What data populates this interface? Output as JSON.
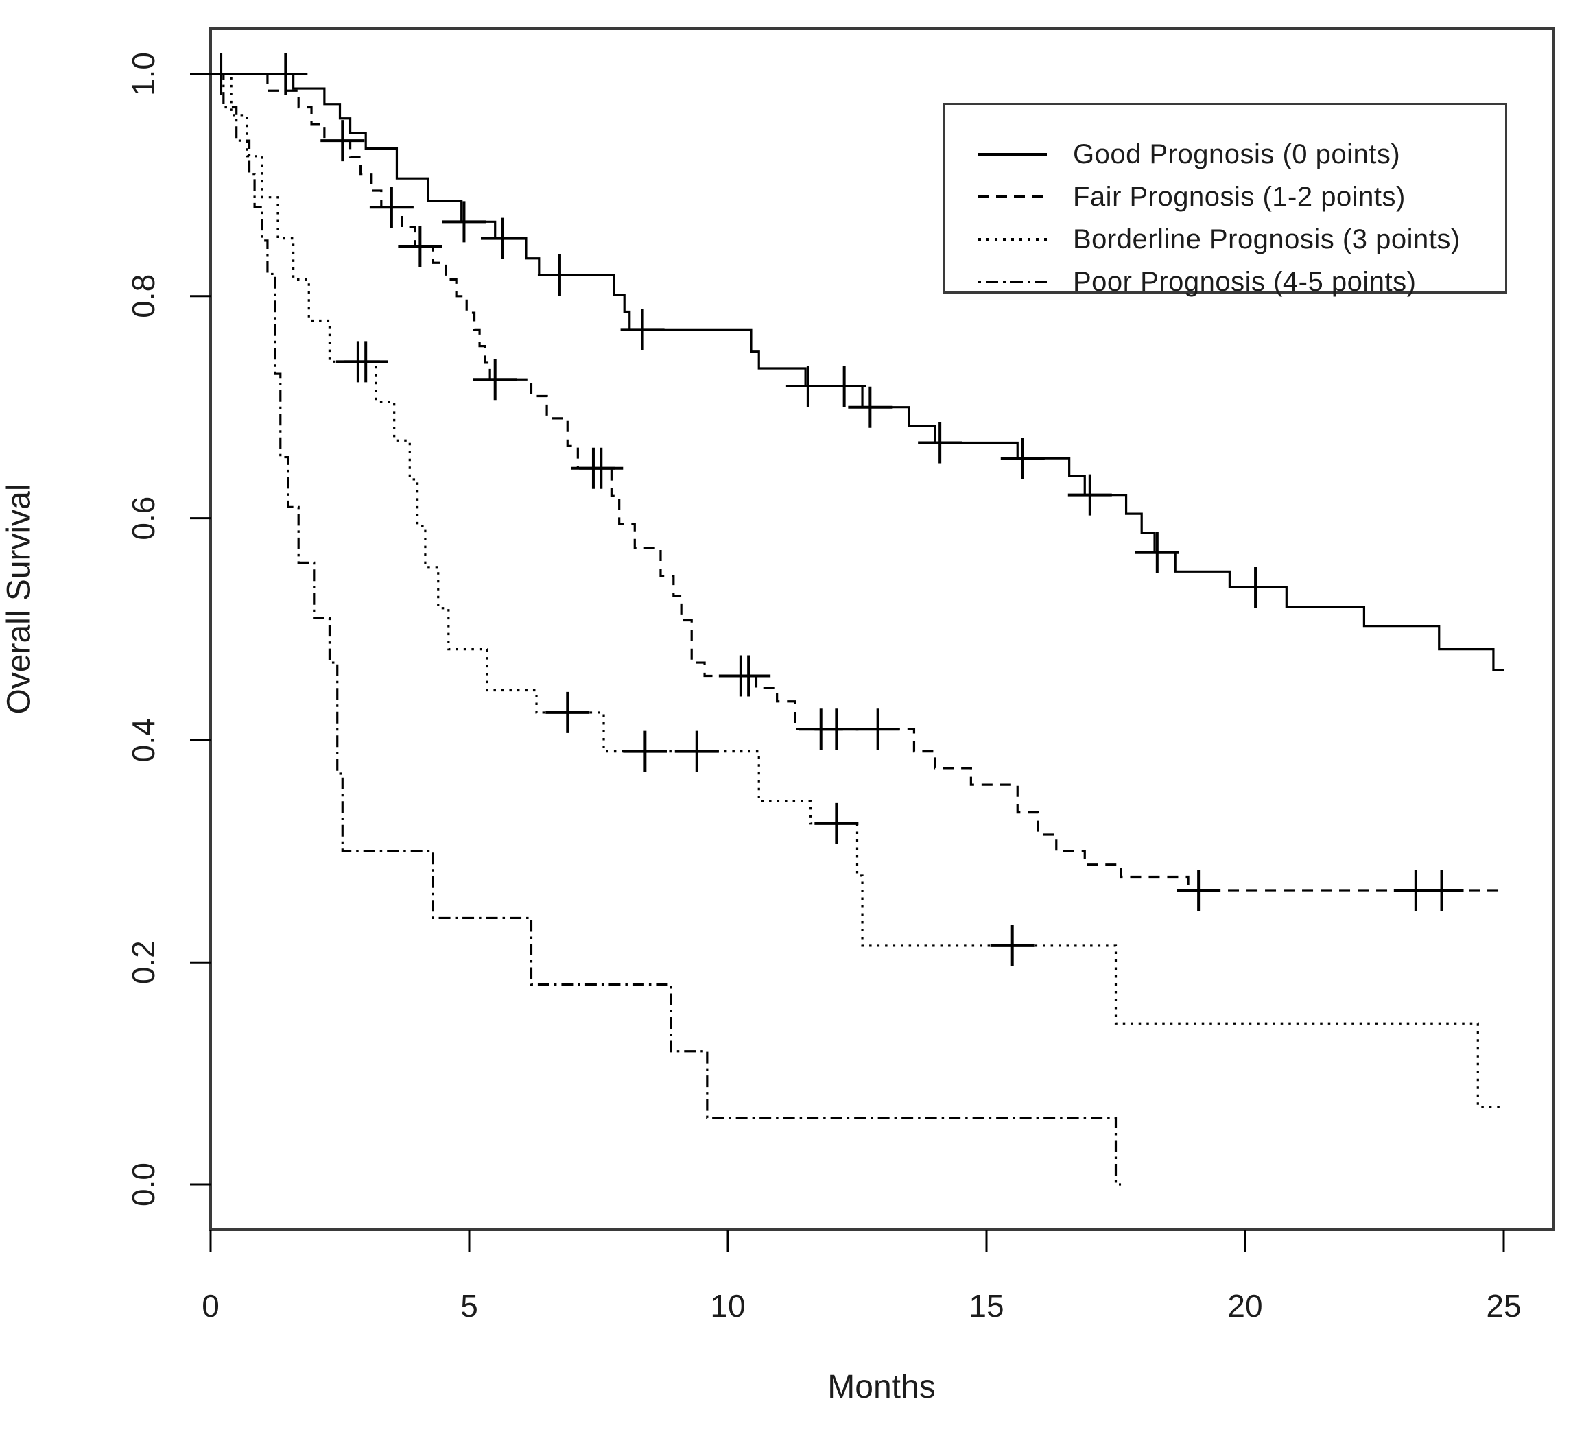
{
  "figure": {
    "background_color": "#ffffff",
    "line_color": "#000000",
    "text_color": "#1c1c1c",
    "border_color": "#3a3a3a"
  },
  "axes": {
    "x_title": "Months",
    "y_title": "Overall Survival",
    "x_tick_labels": [
      "0",
      "5",
      "10",
      "15",
      "20",
      "25"
    ],
    "y_tick_labels": [
      "0.0",
      "0.2",
      "0.4",
      "0.6",
      "0.8",
      "1.0"
    ]
  },
  "legend": {
    "entries": [
      {
        "label": "Good Prognosis (0 points)",
        "style": "solid"
      },
      {
        "label": "Fair Prognosis (1-2 points)",
        "style": "dashed"
      },
      {
        "label": "Borderline Prognosis (3 points)",
        "style": "dotted"
      },
      {
        "label": "Poor Prognosis (4-5 points)",
        "style": "dashdot"
      }
    ]
  },
  "chart_data": {
    "type": "line",
    "subtype": "kaplan-meier-step-function",
    "title": "",
    "xlabel": "Months",
    "ylabel": "Overall Survival",
    "xlim": [
      0,
      25
    ],
    "ylim": [
      0.0,
      1.0
    ],
    "xticks": [
      0,
      5,
      10,
      15,
      20,
      25
    ],
    "yticks": [
      0.0,
      0.2,
      0.4,
      0.6,
      0.8,
      1.0
    ],
    "grid": false,
    "legend_position": "top-right",
    "censor_marker": "plus",
    "series": [
      {
        "name": "Good Prognosis (0 points)",
        "style": "solid",
        "end_t": 25.0,
        "points": [
          [
            0,
            1.0
          ],
          [
            1.6,
            0.987
          ],
          [
            2.2,
            0.973
          ],
          [
            2.5,
            0.96
          ],
          [
            2.7,
            0.947
          ],
          [
            3.0,
            0.933
          ],
          [
            3.6,
            0.906
          ],
          [
            4.2,
            0.886
          ],
          [
            4.85,
            0.867
          ],
          [
            5.5,
            0.852
          ],
          [
            6.1,
            0.834
          ],
          [
            6.35,
            0.819
          ],
          [
            7.8,
            0.801
          ],
          [
            8.0,
            0.786
          ],
          [
            8.1,
            0.77
          ],
          [
            10.45,
            0.75
          ],
          [
            10.6,
            0.735
          ],
          [
            11.5,
            0.719
          ],
          [
            12.6,
            0.7
          ],
          [
            13.5,
            0.683
          ],
          [
            14.0,
            0.668
          ],
          [
            15.6,
            0.654
          ],
          [
            16.6,
            0.638
          ],
          [
            16.9,
            0.621
          ],
          [
            17.7,
            0.604
          ],
          [
            18.0,
            0.587
          ],
          [
            18.25,
            0.569
          ],
          [
            18.65,
            0.552
          ],
          [
            19.7,
            0.538
          ],
          [
            20.8,
            0.52
          ],
          [
            22.3,
            0.503
          ],
          [
            23.75,
            0.482
          ],
          [
            24.8,
            0.463
          ]
        ],
        "censors": [
          [
            0.2,
            1.0
          ],
          [
            1.45,
            1.0
          ],
          [
            4.9,
            0.867
          ],
          [
            5.65,
            0.852
          ],
          [
            6.75,
            0.819
          ],
          [
            8.35,
            0.77
          ],
          [
            11.55,
            0.719
          ],
          [
            12.25,
            0.719
          ],
          [
            12.75,
            0.7
          ],
          [
            14.1,
            0.668
          ],
          [
            15.7,
            0.654
          ],
          [
            17.0,
            0.621
          ],
          [
            18.3,
            0.569
          ],
          [
            20.2,
            0.538
          ]
        ]
      },
      {
        "name": "Fair Prognosis (1-2 points)",
        "style": "dashed",
        "end_t": 25.0,
        "points": [
          [
            0,
            1.0
          ],
          [
            1.1,
            0.985
          ],
          [
            1.7,
            0.97
          ],
          [
            1.95,
            0.955
          ],
          [
            2.2,
            0.94
          ],
          [
            2.7,
            0.925
          ],
          [
            2.9,
            0.91
          ],
          [
            3.1,
            0.895
          ],
          [
            3.3,
            0.88
          ],
          [
            3.7,
            0.862
          ],
          [
            3.95,
            0.845
          ],
          [
            4.3,
            0.83
          ],
          [
            4.55,
            0.815
          ],
          [
            4.75,
            0.8
          ],
          [
            4.95,
            0.785
          ],
          [
            5.1,
            0.77
          ],
          [
            5.2,
            0.755
          ],
          [
            5.3,
            0.74
          ],
          [
            5.4,
            0.725
          ],
          [
            6.2,
            0.71
          ],
          [
            6.5,
            0.69
          ],
          [
            6.9,
            0.665
          ],
          [
            7.1,
            0.645
          ],
          [
            7.75,
            0.62
          ],
          [
            7.9,
            0.595
          ],
          [
            8.2,
            0.573
          ],
          [
            8.7,
            0.548
          ],
          [
            8.95,
            0.53
          ],
          [
            9.1,
            0.508
          ],
          [
            9.3,
            0.47
          ],
          [
            9.55,
            0.458
          ],
          [
            10.55,
            0.447
          ],
          [
            10.95,
            0.435
          ],
          [
            11.3,
            0.41
          ],
          [
            13.6,
            0.39
          ],
          [
            14.0,
            0.375
          ],
          [
            14.7,
            0.36
          ],
          [
            15.6,
            0.335
          ],
          [
            16.0,
            0.315
          ],
          [
            16.35,
            0.3
          ],
          [
            16.9,
            0.288
          ],
          [
            17.6,
            0.277
          ],
          [
            18.9,
            0.265
          ]
        ],
        "censors": [
          [
            2.55,
            0.94
          ],
          [
            3.5,
            0.88
          ],
          [
            4.05,
            0.845
          ],
          [
            5.5,
            0.725
          ],
          [
            7.4,
            0.645
          ],
          [
            7.55,
            0.645
          ],
          [
            10.25,
            0.458
          ],
          [
            10.4,
            0.458
          ],
          [
            11.8,
            0.41
          ],
          [
            12.1,
            0.41
          ],
          [
            12.9,
            0.41
          ],
          [
            19.1,
            0.265
          ],
          [
            23.3,
            0.265
          ],
          [
            23.8,
            0.265
          ]
        ]
      },
      {
        "name": "Borderline Prognosis (3 points)",
        "style": "dotted",
        "end_t": 25.0,
        "points": [
          [
            0,
            1.0
          ],
          [
            0.4,
            0.963
          ],
          [
            0.7,
            0.926
          ],
          [
            1.0,
            0.889
          ],
          [
            1.3,
            0.852
          ],
          [
            1.6,
            0.815
          ],
          [
            1.9,
            0.778
          ],
          [
            2.3,
            0.741
          ],
          [
            3.2,
            0.705
          ],
          [
            3.55,
            0.67
          ],
          [
            3.85,
            0.635
          ],
          [
            4.0,
            0.593
          ],
          [
            4.15,
            0.556
          ],
          [
            4.4,
            0.519
          ],
          [
            4.6,
            0.482
          ],
          [
            5.35,
            0.445
          ],
          [
            6.3,
            0.425
          ],
          [
            7.6,
            0.39
          ],
          [
            10.6,
            0.345
          ],
          [
            11.6,
            0.325
          ],
          [
            12.5,
            0.278
          ],
          [
            12.6,
            0.215
          ],
          [
            17.5,
            0.145
          ],
          [
            24.5,
            0.07
          ]
        ],
        "censors": [
          [
            2.85,
            0.741
          ],
          [
            3.0,
            0.741
          ],
          [
            6.9,
            0.425
          ],
          [
            8.4,
            0.39
          ],
          [
            9.4,
            0.39
          ],
          [
            12.1,
            0.325
          ],
          [
            15.5,
            0.215
          ]
        ]
      },
      {
        "name": "Poor Prognosis (4-5 points)",
        "style": "dashdot",
        "end_t": 17.6,
        "points": [
          [
            0,
            1.0
          ],
          [
            0.25,
            0.97
          ],
          [
            0.5,
            0.94
          ],
          [
            0.75,
            0.91
          ],
          [
            0.85,
            0.88
          ],
          [
            1.0,
            0.85
          ],
          [
            1.1,
            0.82
          ],
          [
            1.25,
            0.73
          ],
          [
            1.35,
            0.655
          ],
          [
            1.5,
            0.61
          ],
          [
            1.7,
            0.56
          ],
          [
            2.0,
            0.51
          ],
          [
            2.3,
            0.47
          ],
          [
            2.45,
            0.37
          ],
          [
            2.55,
            0.3
          ],
          [
            4.3,
            0.24
          ],
          [
            6.2,
            0.18
          ],
          [
            8.9,
            0.12
          ],
          [
            9.6,
            0.06
          ],
          [
            17.5,
            0.0
          ]
        ],
        "censors": []
      }
    ]
  }
}
